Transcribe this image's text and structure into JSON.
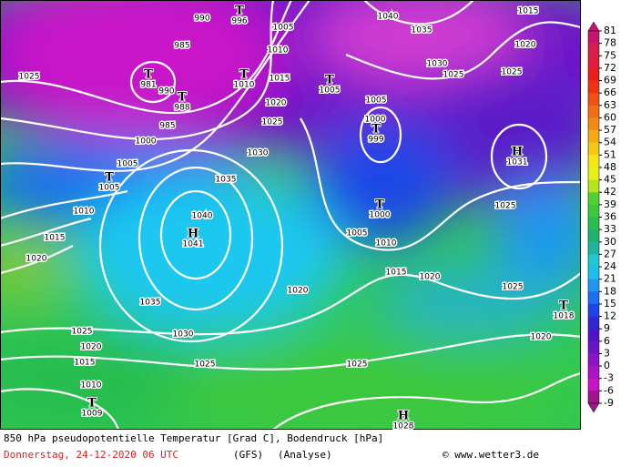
{
  "caption": "850 hPa pseudopotentielle Temperatur [Grad C], Bodendruck [hPa]",
  "date": "Donnerstag, 24-12-2020  06 UTC",
  "model": "(GFS)",
  "run": "(Analyse)",
  "credit": "© www.wetter3.de",
  "scale": {
    "ticks": [
      81,
      78,
      75,
      72,
      69,
      66,
      63,
      60,
      57,
      54,
      51,
      48,
      45,
      42,
      39,
      36,
      33,
      30,
      27,
      24,
      21,
      18,
      15,
      12,
      9,
      6,
      3,
      0,
      -3,
      -6,
      -9
    ],
    "colors": [
      "#c8146e",
      "#d61e50",
      "#e01e3c",
      "#e81e1e",
      "#f03214",
      "#f05014",
      "#f06e14",
      "#f08c14",
      "#f5aa14",
      "#f5c814",
      "#f5e614",
      "#e6f014",
      "#b4e61e",
      "#50d232",
      "#3cc83c",
      "#28be50",
      "#1eb46e",
      "#1eb4a0",
      "#1ec8d2",
      "#1ebef0",
      "#1e96f0",
      "#1e6ef0",
      "#1e46e6",
      "#3228d2",
      "#5014c8",
      "#6e14c8",
      "#8c14c8",
      "#aa14c8",
      "#c814c8",
      "#a0148c"
    ]
  },
  "isobar_labels": [
    "990",
    "1005",
    "1040",
    "1035",
    "1015",
    "985",
    "1010",
    "1030",
    "1025",
    "1020",
    "1025",
    "1025",
    "990",
    "1015",
    "1020",
    "1025",
    "985",
    "1000",
    "1005",
    "1000",
    "1030",
    "1005",
    "1035",
    "1040",
    "1010",
    "1025",
    "1005",
    "1010",
    "1015",
    "1020",
    "1015",
    "1020",
    "1020",
    "1025",
    "1035",
    "1030",
    "1025",
    "1020",
    "1020",
    "1015",
    "1025",
    "1025",
    "1010"
  ],
  "centers": [
    {
      "symbol": "T",
      "value": "996"
    },
    {
      "symbol": "T",
      "value": "981"
    },
    {
      "symbol": "T",
      "value": "988"
    },
    {
      "symbol": "T",
      "value": "1010"
    },
    {
      "symbol": "T",
      "value": "1005"
    },
    {
      "symbol": "T",
      "value": "999"
    },
    {
      "symbol": "H",
      "value": "1031"
    },
    {
      "symbol": "T",
      "value": "1005"
    },
    {
      "symbol": "T",
      "value": "1000"
    },
    {
      "symbol": "H",
      "value": "1041"
    },
    {
      "symbol": "T",
      "value": "1018"
    },
    {
      "symbol": "T",
      "value": "1009"
    },
    {
      "symbol": "H",
      "value": "1028"
    }
  ]
}
